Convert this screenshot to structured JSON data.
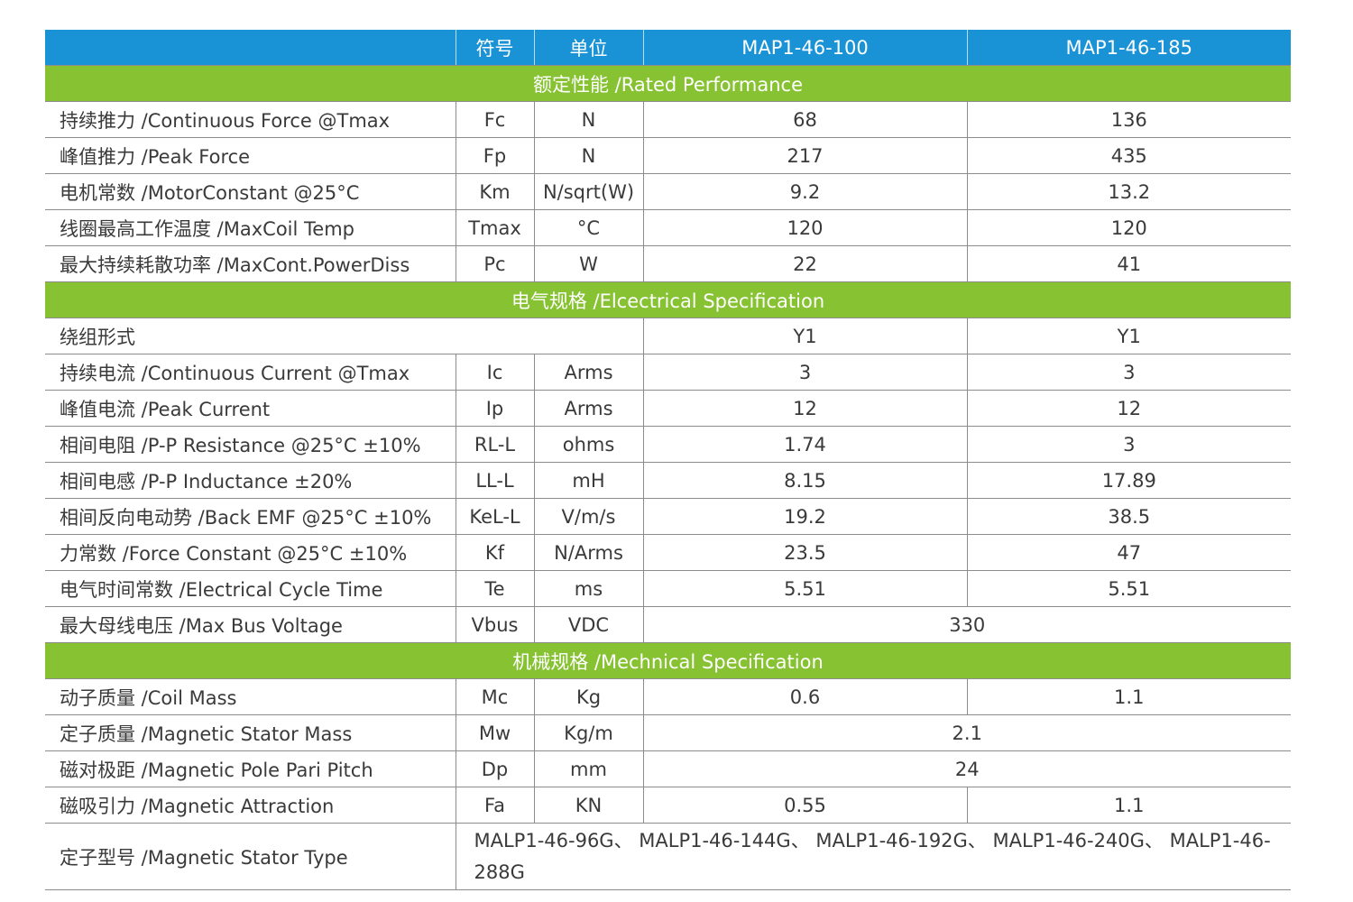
{
  "header": {
    "symbol": "符号",
    "unit": "单位",
    "models": [
      "MAP1-46-100",
      "MAP1-46-185"
    ]
  },
  "sections": [
    {
      "title": "额定性能 /Rated Performance",
      "rows": [
        {
          "name": "持续推力 /Continuous Force @Tmax",
          "symbol": "Fc",
          "unit": "N",
          "v1": "68",
          "v2": "136"
        },
        {
          "name": "峰值推力 /Peak Force",
          "symbol": "Fp",
          "unit": "N",
          "v1": "217",
          "v2": "435"
        },
        {
          "name": "电机常数 /MotorConstant @25°C",
          "symbol": "Km",
          "unit": "N/sqrt(W)",
          "v1": "9.2",
          "v2": "13.2"
        },
        {
          "name": "线圈最高工作温度 /MaxCoil Temp",
          "symbol": "Tmax",
          "unit": "°C",
          "v1": "120",
          "v2": "120"
        },
        {
          "name": "最大持续耗散功率 /MaxCont.PowerDiss",
          "symbol": "Pc",
          "unit": "W",
          "v1": "22",
          "v2": "41"
        }
      ]
    },
    {
      "title": "电气规格 /Elcectrical Specification",
      "winding": {
        "name": "绕组形式",
        "v1": "Y1",
        "v2": "Y1"
      },
      "rows": [
        {
          "name": "持续电流 /Continuous Current @Tmax",
          "symbol": "Ic",
          "unit": "Arms",
          "v1": "3",
          "v2": "3"
        },
        {
          "name": "峰值电流 /Peak Current",
          "symbol": "Ip",
          "unit": "Arms",
          "v1": "12",
          "v2": "12"
        },
        {
          "name": "相间电阻 /P-P Resistance @25°C ±10%",
          "symbol": "RL-L",
          "unit": "ohms",
          "v1": "1.74",
          "v2": "3"
        },
        {
          "name": "相间电感 /P-P Inductance ±20%",
          "symbol": "LL-L",
          "unit": "mH",
          "v1": "8.15",
          "v2": "17.89"
        },
        {
          "name": "相间反向电动势 /Back EMF @25°C ±10%",
          "symbol": "KeL-L",
          "unit": "V/m/s",
          "v1": "19.2",
          "v2": "38.5"
        },
        {
          "name": "力常数 /Force Constant @25°C ±10%",
          "symbol": "Kf",
          "unit": "N/Arms",
          "v1": "23.5",
          "v2": "47"
        },
        {
          "name": "电气时间常数 /Electrical Cycle Time",
          "symbol": "Te",
          "unit": "ms",
          "v1": "5.51",
          "v2": "5.51"
        }
      ],
      "bus": {
        "name": "最大母线电压 /Max Bus Voltage",
        "symbol": "Vbus",
        "unit": "VDC",
        "value": "330"
      }
    },
    {
      "title": "机械规格 /Mechnical Specification",
      "coil_mass": {
        "name": "动子质量 /Coil Mass",
        "symbol": "Mc",
        "unit": "Kg",
        "v1": "0.6",
        "v2": "1.1"
      },
      "stator_mass": {
        "name": "定子质量 /Magnetic Stator Mass",
        "symbol": "Mw",
        "unit": "Kg/m",
        "value": "2.1"
      },
      "pole_pitch": {
        "name": "磁对极距 /Magnetic Pole Pari Pitch",
        "symbol": "Dp",
        "unit": "mm",
        "value": "24"
      },
      "attraction": {
        "name": "磁吸引力 /Magnetic Attraction",
        "symbol": "Fa",
        "unit": "KN",
        "v1": "0.55",
        "v2": "1.1"
      },
      "stator_type": {
        "name": "定子型号 /Magnetic Stator Type",
        "value": "MALP1-46-96G、 MALP1-46-144G、 MALP1-46-192G、 MALP1-46-240G、 MALP1-46-288G"
      }
    }
  ],
  "colors": {
    "header_blue": "#1a92d6",
    "section_green": "#86c232",
    "text": "#3a3a3a"
  }
}
